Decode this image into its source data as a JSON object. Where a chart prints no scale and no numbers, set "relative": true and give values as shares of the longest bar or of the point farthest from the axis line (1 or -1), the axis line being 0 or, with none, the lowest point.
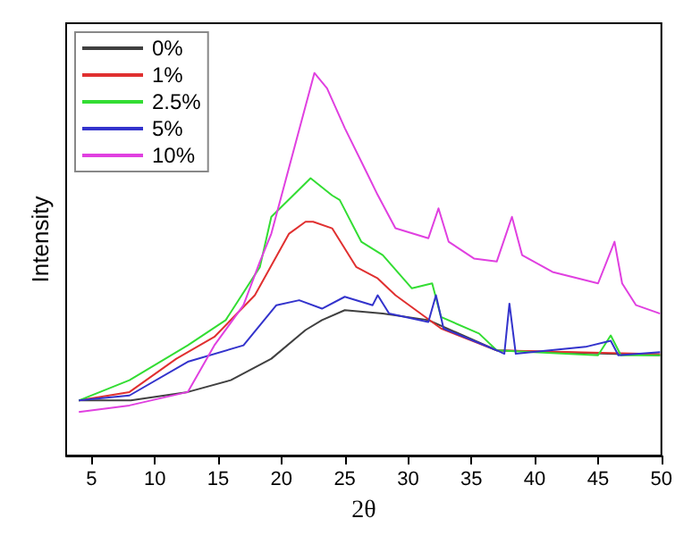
{
  "chart_data": {
    "type": "line",
    "relative": true,
    "xlabel": "2θ",
    "ylabel": "Intensity",
    "xlim": [
      3,
      50
    ],
    "xticks": [
      5,
      10,
      15,
      20,
      25,
      30,
      35,
      40,
      45,
      50
    ],
    "grid": false,
    "legend": "top left",
    "marker": "none",
    "line_style": "solid",
    "series": [
      {
        "name": "0%",
        "color": "#404040",
        "x": [
          4,
          8.1,
          12.6,
          16,
          19.2,
          21.9,
          23.2,
          25,
          28,
          31.6,
          37,
          49.9
        ],
        "values": [
          0.144,
          0.144,
          0.166,
          0.197,
          0.253,
          0.328,
          0.354,
          0.38,
          0.371,
          0.354,
          0.275,
          0.262
        ]
      },
      {
        "name": "1%",
        "color": "#e03030",
        "x": [
          4,
          8,
          11.7,
          14.7,
          17.9,
          20.6,
          21.9,
          22.5,
          24,
          25.9,
          27.6,
          29,
          32.6,
          37,
          49.9
        ],
        "values": [
          0.144,
          0.166,
          0.253,
          0.31,
          0.419,
          0.58,
          0.611,
          0.611,
          0.594,
          0.493,
          0.463,
          0.419,
          0.332,
          0.275,
          0.265
        ]
      },
      {
        "name": "2.5%",
        "color": "#33dd33",
        "x": [
          4,
          8,
          12.6,
          15.6,
          18.3,
          19.2,
          22.3,
          24,
          24.6,
          26.3,
          28,
          30.3,
          31.9,
          32.6,
          35.6,
          37,
          45,
          46,
          46.8,
          49.9
        ],
        "values": [
          0.144,
          0.197,
          0.288,
          0.354,
          0.493,
          0.624,
          0.725,
          0.68,
          0.668,
          0.559,
          0.524,
          0.437,
          0.45,
          0.362,
          0.319,
          0.275,
          0.262,
          0.314,
          0.262,
          0.262
        ]
      },
      {
        "name": "5%",
        "color": "#3333cc",
        "x": [
          4,
          8,
          12.6,
          17,
          19.6,
          21.4,
          23.2,
          25,
          27.2,
          27.6,
          28.5,
          31.6,
          32.2,
          32.8,
          37,
          37.6,
          38,
          38.5,
          44,
          46,
          46.6,
          49.9
        ],
        "values": [
          0.144,
          0.157,
          0.245,
          0.288,
          0.393,
          0.406,
          0.384,
          0.415,
          0.393,
          0.419,
          0.371,
          0.349,
          0.419,
          0.332,
          0.275,
          0.266,
          0.397,
          0.266,
          0.284,
          0.3,
          0.262,
          0.27
        ]
      },
      {
        "name": "10%",
        "color": "#e040e0",
        "x": [
          4,
          8,
          12.6,
          14.7,
          17,
          18.3,
          19.2,
          22.6,
          23.6,
          25,
          26.7,
          27.6,
          29,
          31.6,
          32.4,
          33.2,
          35.2,
          37,
          38.2,
          39,
          41.4,
          45,
          46.3,
          46.9,
          48,
          49.9
        ],
        "values": [
          0.114,
          0.131,
          0.166,
          0.288,
          0.393,
          0.507,
          0.58,
          1,
          0.96,
          0.856,
          0.742,
          0.681,
          0.594,
          0.568,
          0.646,
          0.559,
          0.515,
          0.507,
          0.624,
          0.524,
          0.48,
          0.45,
          0.559,
          0.45,
          0.393,
          0.371
        ]
      }
    ]
  }
}
